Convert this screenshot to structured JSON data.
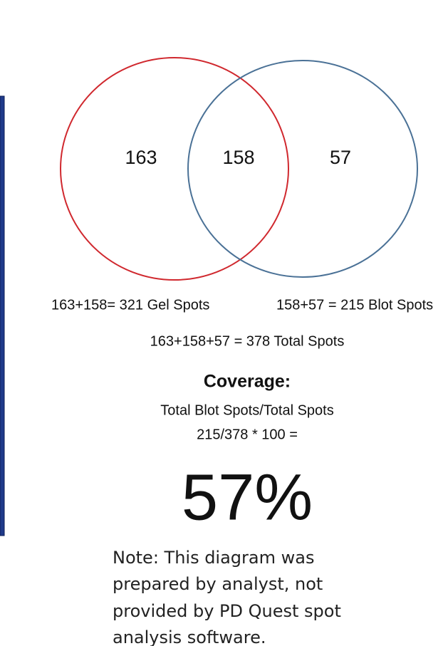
{
  "venn": {
    "regions": [
      {
        "label": "163"
      },
      {
        "label": "158"
      },
      {
        "label": "57"
      }
    ]
  },
  "equations": {
    "gel": "163+158= 321 Gel Spots",
    "blot": "158+57 = 215 Blot Spots",
    "total": "163+158+57 = 378 Total Spots"
  },
  "coverage": {
    "title": "Coverage:",
    "formula_line1": "Total Blot Spots/Total Spots",
    "formula_line2": "215/378 * 100 =",
    "result": "57%"
  },
  "note": {
    "lines": [
      "Note: This diagram was",
      "prepared by analyst, not",
      "provided by PD Quest spot",
      "analysis software."
    ]
  }
}
